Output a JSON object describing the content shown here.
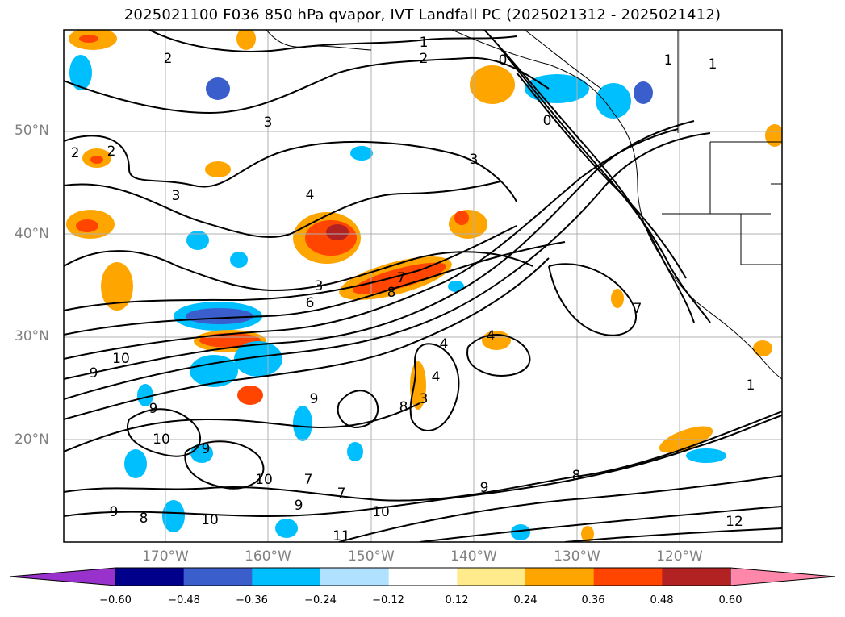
{
  "title": "2025021100 F036 850 hPa qvapor, IVT Landfall PC (2025021312 - 2025021412)",
  "lat_labels": [
    "50°N",
    "40°N",
    "30°N",
    "20°N"
  ],
  "lon_labels": [
    "170°W",
    "160°W",
    "150°W",
    "140°W",
    "130°W",
    "120°W"
  ],
  "colorbar": {
    "ticks": [
      "−0.60",
      "−0.48",
      "−0.36",
      "−0.24",
      "−0.12",
      "0.12",
      "0.24",
      "0.36",
      "0.48",
      "0.60"
    ],
    "colors": [
      "#9932cc",
      "#00008b",
      "#3a5fcd",
      "#00bfff",
      "#b0e2ff",
      "#ffffff",
      "#ffeb8c",
      "#ffa500",
      "#ff4500",
      "#b22222",
      "#ff88aa"
    ]
  },
  "contour_labels": [
    "1",
    "2",
    "2",
    "0",
    "0",
    "3",
    "3",
    "3",
    "3",
    "4",
    "6",
    "8",
    "7",
    "1",
    "2",
    "2",
    "10",
    "9",
    "9",
    "9",
    "9",
    "10",
    "10",
    "10",
    "9",
    "8",
    "9",
    "7",
    "7",
    "4",
    "4",
    "4",
    "3",
    "8",
    "8",
    "9",
    "10",
    "11",
    "12",
    "1",
    "1",
    "7"
  ],
  "shading_colors": {
    "orange": "#ffa500",
    "yellow": "#ffeb8c",
    "red": "#ff4500",
    "darkred": "#b22222",
    "lightblue": "#b0e2ff",
    "blue": "#00bfff",
    "royalblue": "#3a5fcd",
    "navy": "#00008b"
  }
}
